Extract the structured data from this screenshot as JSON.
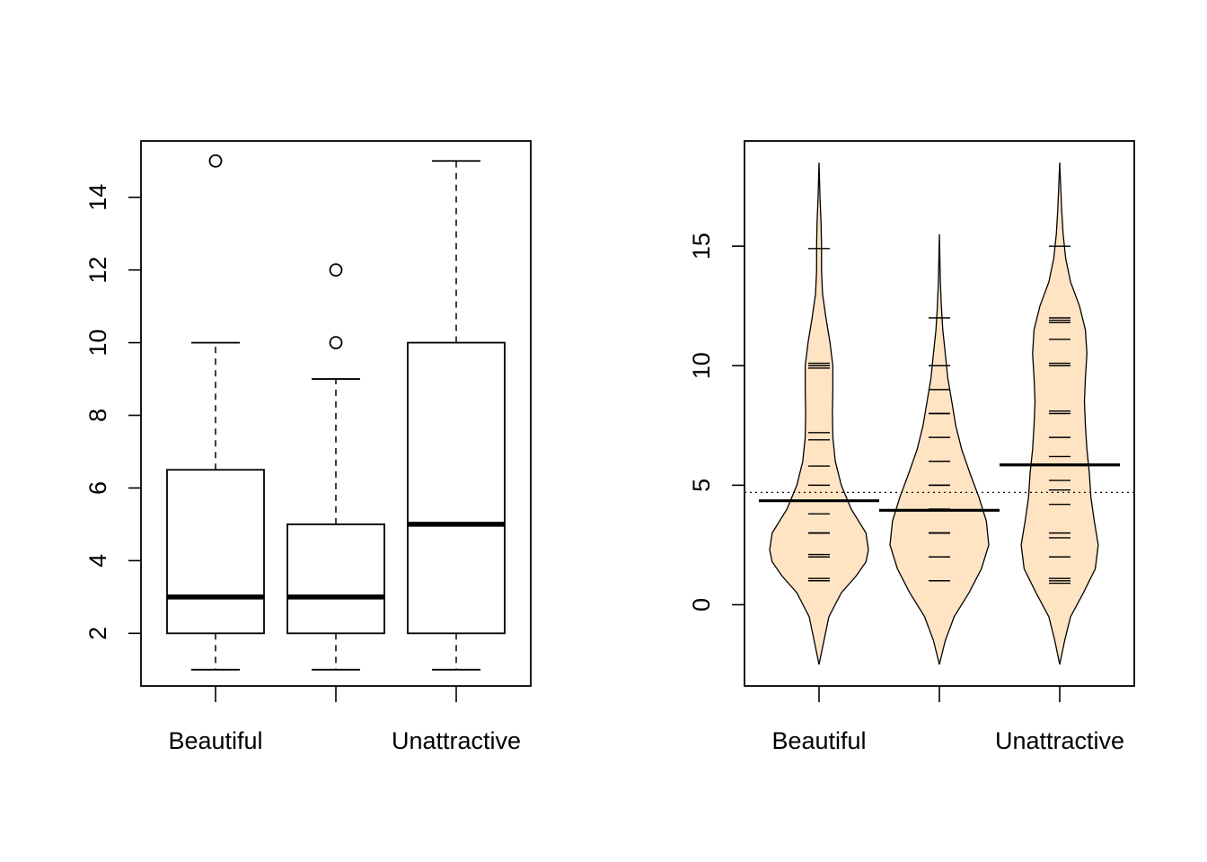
{
  "chart_data": [
    {
      "type": "boxplot",
      "title": "",
      "xlabel": "",
      "ylabel": "",
      "categories": [
        "Beautiful",
        "",
        "Unattractive"
      ],
      "ylim": [
        0.55,
        15.55
      ],
      "yticks": [
        2,
        4,
        6,
        8,
        10,
        12,
        14
      ],
      "boxes": [
        {
          "category": "Beautiful",
          "whisker_low": 1,
          "q1": 2,
          "median": 3,
          "q3": 6.5,
          "whisker_high": 10,
          "outliers": [
            15
          ]
        },
        {
          "category": "",
          "whisker_low": 1,
          "q1": 2,
          "median": 3,
          "q3": 5,
          "whisker_high": 9,
          "outliers": [
            10,
            12
          ]
        },
        {
          "category": "Unattractive",
          "whisker_low": 1,
          "q1": 2,
          "median": 5,
          "q3": 10,
          "whisker_high": 15,
          "outliers": []
        }
      ],
      "grid": false,
      "legend": "none"
    },
    {
      "type": "beanplot",
      "title": "",
      "xlabel": "",
      "ylabel": "",
      "categories": [
        "Beautiful",
        "",
        "Unattractive"
      ],
      "ylim": [
        -3.4,
        19.4
      ],
      "yticks": [
        0,
        5,
        10,
        15
      ],
      "overall_mean": 4.7,
      "fill_color": "#ffe4c4",
      "beans": [
        {
          "category": "Beautiful",
          "mean": 4.35,
          "range": [
            -2.5,
            18.5
          ],
          "observations": [
            1,
            1,
            1,
            1.1,
            2,
            2,
            2,
            2.1,
            3,
            3,
            3,
            3.8,
            5,
            5.8,
            6.9,
            7.2,
            9.9,
            10,
            10.1,
            14.9
          ],
          "density": [
            [
              -2.5,
              0
            ],
            [
              -1.5,
              0.1
            ],
            [
              -0.5,
              0.2
            ],
            [
              0.5,
              0.45
            ],
            [
              1.2,
              0.75
            ],
            [
              1.8,
              0.95
            ],
            [
              2.3,
              1.0
            ],
            [
              3.0,
              0.95
            ],
            [
              4.0,
              0.65
            ],
            [
              5.0,
              0.45
            ],
            [
              6.0,
              0.33
            ],
            [
              7.0,
              0.28
            ],
            [
              8.0,
              0.27
            ],
            [
              9.0,
              0.28
            ],
            [
              10.0,
              0.28
            ],
            [
              11.0,
              0.22
            ],
            [
              12.0,
              0.14
            ],
            [
              13.0,
              0.07
            ],
            [
              14.0,
              0.05
            ],
            [
              15.0,
              0.05
            ],
            [
              16.0,
              0.04
            ],
            [
              17.0,
              0.02
            ],
            [
              18.5,
              0
            ]
          ]
        },
        {
          "category": "",
          "mean": 3.95,
          "range": [
            -2.5,
            15.5
          ],
          "observations": [
            1,
            1,
            2,
            2,
            3,
            3,
            3,
            3,
            4,
            5,
            5,
            6,
            7,
            8,
            8,
            9,
            10,
            12
          ],
          "density": [
            [
              -2.5,
              0
            ],
            [
              -1.5,
              0.12
            ],
            [
              -0.5,
              0.3
            ],
            [
              0.5,
              0.6
            ],
            [
              1.5,
              0.85
            ],
            [
              2.5,
              1.0
            ],
            [
              3.5,
              0.95
            ],
            [
              4.5,
              0.8
            ],
            [
              5.5,
              0.62
            ],
            [
              6.5,
              0.45
            ],
            [
              7.5,
              0.33
            ],
            [
              8.5,
              0.25
            ],
            [
              9.5,
              0.17
            ],
            [
              10.5,
              0.12
            ],
            [
              11.5,
              0.07
            ],
            [
              12.5,
              0.04
            ],
            [
              13.5,
              0.02
            ],
            [
              15.5,
              0
            ]
          ]
        },
        {
          "category": "Unattractive",
          "mean": 5.85,
          "range": [
            -2.5,
            18.5
          ],
          "observations": [
            0.9,
            1,
            1.1,
            2,
            2,
            2.8,
            3,
            4.2,
            4.8,
            5.2,
            6.2,
            7,
            8,
            8.1,
            10,
            10.1,
            11.1,
            11.8,
            11.9,
            12,
            15
          ],
          "density": [
            [
              -2.5,
              0
            ],
            [
              -1.5,
              0.1
            ],
            [
              -0.5,
              0.22
            ],
            [
              0.5,
              0.48
            ],
            [
              1.5,
              0.72
            ],
            [
              2.5,
              0.78
            ],
            [
              3.5,
              0.7
            ],
            [
              4.5,
              0.63
            ],
            [
              5.5,
              0.6
            ],
            [
              6.5,
              0.55
            ],
            [
              7.5,
              0.52
            ],
            [
              8.5,
              0.5
            ],
            [
              9.5,
              0.52
            ],
            [
              10.5,
              0.55
            ],
            [
              11.5,
              0.52
            ],
            [
              12.5,
              0.4
            ],
            [
              13.5,
              0.22
            ],
            [
              14.5,
              0.12
            ],
            [
              15.5,
              0.07
            ],
            [
              16.5,
              0.04
            ],
            [
              17.5,
              0.02
            ],
            [
              18.5,
              0
            ]
          ]
        }
      ],
      "grid": false,
      "legend": "none"
    }
  ]
}
